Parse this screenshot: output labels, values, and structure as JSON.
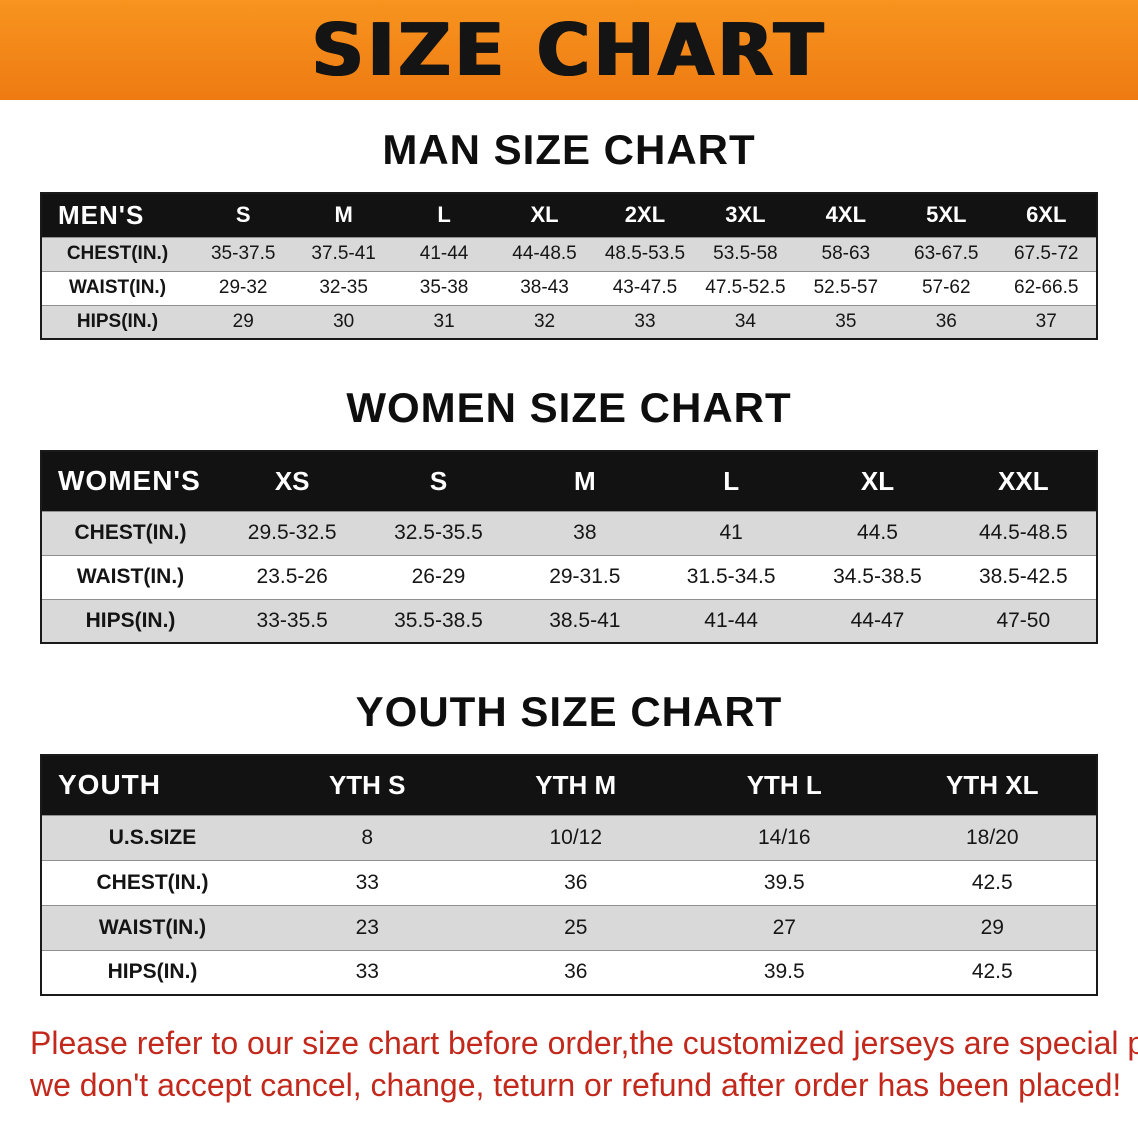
{
  "banner": {
    "title": "SIZE CHART",
    "bg_color": "#f48a1d",
    "text_color": "#141414"
  },
  "sections": [
    {
      "heading": "MAN SIZE CHART",
      "table": {
        "header": [
          "MEN'S",
          "S",
          "M",
          "L",
          "XL",
          "2XL",
          "3XL",
          "4XL",
          "5XL",
          "6XL"
        ],
        "rows": [
          [
            "CHEST(IN.)",
            "35-37.5",
            "37.5-41",
            "41-44",
            "44-48.5",
            "48.5-53.5",
            "53.5-58",
            "58-63",
            "63-67.5",
            "67.5-72"
          ],
          [
            "WAIST(IN.)",
            "29-32",
            "32-35",
            "35-38",
            "38-43",
            "43-47.5",
            "47.5-52.5",
            "52.5-57",
            "57-62",
            "62-66.5"
          ],
          [
            "HIPS(IN.)",
            "29",
            "30",
            "31",
            "32",
            "33",
            "34",
            "35",
            "36",
            "37"
          ]
        ]
      }
    },
    {
      "heading": "WOMEN SIZE CHART",
      "table": {
        "header": [
          "WOMEN'S",
          "XS",
          "S",
          "M",
          "L",
          "XL",
          "XXL"
        ],
        "rows": [
          [
            "CHEST(IN.)",
            "29.5-32.5",
            "32.5-35.5",
            "38",
            "41",
            "44.5",
            "44.5-48.5"
          ],
          [
            "WAIST(IN.)",
            "23.5-26",
            "26-29",
            "29-31.5",
            "31.5-34.5",
            "34.5-38.5",
            "38.5-42.5"
          ],
          [
            "HIPS(IN.)",
            "33-35.5",
            "35.5-38.5",
            "38.5-41",
            "41-44",
            "44-47",
            "47-50"
          ]
        ]
      }
    },
    {
      "heading": "YOUTH SIZE CHART",
      "table": {
        "header": [
          "YOUTH",
          "YTH S",
          "YTH M",
          "YTH L",
          "YTH XL"
        ],
        "rows": [
          [
            "U.S.SIZE",
            "8",
            "10/12",
            "14/16",
            "18/20"
          ],
          [
            "CHEST(IN.)",
            "33",
            "36",
            "39.5",
            "42.5"
          ],
          [
            "WAIST(IN.)",
            "23",
            "25",
            "27",
            "29"
          ],
          [
            "HIPS(IN.)",
            "33",
            "36",
            "39.5",
            "42.5"
          ]
        ]
      }
    }
  ],
  "notice": {
    "line1": "Please refer to our size chart before order,the customized jerseys are special products,",
    "line2": "we don't accept cancel, change, teturn or refund after order has been placed!",
    "text_color": "#c2291c"
  }
}
